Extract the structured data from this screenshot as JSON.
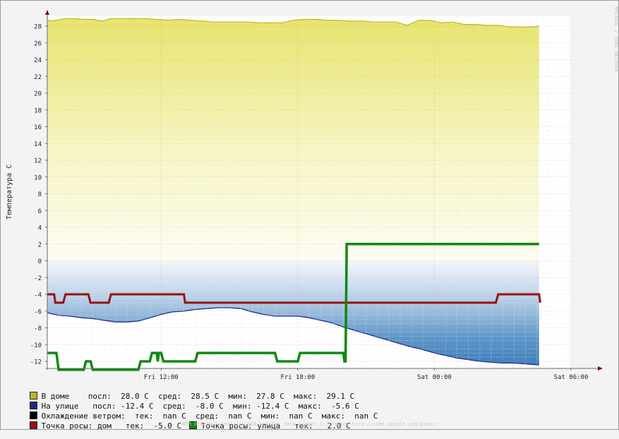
{
  "chart_data": {
    "type": "area",
    "ylabel": "Температура C",
    "ylim": [
      -13,
      30
    ],
    "y_ticks": [
      28,
      26,
      24,
      22,
      20,
      18,
      16,
      14,
      12,
      10,
      8,
      6,
      4,
      2,
      0,
      -2,
      -4,
      -6,
      -8,
      -10,
      -12
    ],
    "x_ticks": [
      "Fri 12:00",
      "Fri 18:00",
      "Sat 00:00",
      "Sat 06:00"
    ],
    "x_tick_hours": [
      12,
      18,
      24,
      30
    ],
    "xlim_hours": [
      7,
      30
    ],
    "grid": true,
    "series": [
      {
        "name": "В доме",
        "color": "#b9b91a",
        "style": "area-gradient-yellow",
        "x": [
          7.0,
          7.1,
          7.4,
          7.8,
          8.2,
          8.6,
          9.0,
          9.4,
          9.8,
          10.3,
          10.8,
          11.3,
          11.8,
          12.3,
          12.8,
          13.3,
          13.8,
          14.3,
          14.8,
          15.3,
          15.8,
          16.3,
          16.8,
          17.3,
          17.8,
          18.3,
          18.8,
          19.3,
          19.8,
          20.3,
          20.8,
          21.3,
          21.8,
          22.3,
          22.8,
          23.3,
          23.8,
          24.3,
          24.8,
          25.3,
          25.8,
          26.3,
          26.8,
          27.3,
          27.8,
          28.3,
          28.6
        ],
        "values": [
          28.8,
          28.6,
          28.7,
          28.9,
          28.9,
          28.8,
          28.8,
          28.6,
          28.9,
          28.9,
          28.9,
          28.9,
          28.8,
          28.7,
          28.8,
          28.7,
          28.6,
          28.5,
          28.5,
          28.5,
          28.5,
          28.4,
          28.4,
          28.4,
          28.7,
          28.8,
          28.8,
          28.7,
          28.7,
          28.6,
          28.6,
          28.5,
          28.5,
          28.5,
          28.1,
          28.7,
          28.7,
          28.4,
          28.5,
          28.2,
          28.2,
          28.1,
          28.1,
          27.9,
          27.9,
          27.9,
          28.0
        ]
      },
      {
        "name": "На улице",
        "color": "#1a2a88",
        "style": "area-gradient-blue",
        "x": [
          7.0,
          7.5,
          8.0,
          8.5,
          9.0,
          9.5,
          10.0,
          10.5,
          11.0,
          11.5,
          12.0,
          12.5,
          13.0,
          13.5,
          14.0,
          14.5,
          15.0,
          15.5,
          16.0,
          16.5,
          17.0,
          17.5,
          18.0,
          18.5,
          19.0,
          19.5,
          20.0,
          20.5,
          21.0,
          21.5,
          22.0,
          22.5,
          23.0,
          23.5,
          24.0,
          24.5,
          25.0,
          25.5,
          26.0,
          26.5,
          27.0,
          27.5,
          28.0,
          28.5,
          28.6
        ],
        "values": [
          -6.2,
          -6.5,
          -6.6,
          -6.8,
          -6.9,
          -7.1,
          -7.3,
          -7.3,
          -7.2,
          -6.8,
          -6.4,
          -6.1,
          -6.0,
          -5.8,
          -5.7,
          -5.6,
          -5.6,
          -5.7,
          -6.1,
          -6.4,
          -6.6,
          -6.6,
          -6.6,
          -6.8,
          -7.1,
          -7.4,
          -7.9,
          -8.3,
          -8.7,
          -9.1,
          -9.5,
          -9.9,
          -10.3,
          -10.6,
          -11.0,
          -11.3,
          -11.6,
          -11.8,
          -12.0,
          -12.1,
          -12.2,
          -12.2,
          -12.3,
          -12.4,
          -12.4
        ]
      },
      {
        "name": "Точка росы: дом",
        "color": "#9c0f0f",
        "style": "step-line",
        "x": [
          7.0,
          7.3,
          7.35,
          7.7,
          7.8,
          8.8,
          8.9,
          9.7,
          9.8,
          13.0,
          13.05,
          16.5,
          18.0,
          21.0,
          24.0,
          26.7,
          26.8,
          28.6,
          28.65
        ],
        "values": [
          -4.0,
          -4.0,
          -5.0,
          -5.0,
          -4.0,
          -4.0,
          -5.0,
          -5.0,
          -4.0,
          -4.0,
          -5.0,
          -5.0,
          -5.0,
          -5.0,
          -5.0,
          -5.0,
          -4.0,
          -4.0,
          -5.0
        ]
      },
      {
        "name": "Точка росы: улица",
        "color": "#0e8a0e",
        "style": "step-line",
        "x": [
          7.0,
          7.4,
          7.5,
          8.6,
          8.7,
          8.9,
          9.0,
          11.0,
          11.1,
          11.5,
          11.6,
          11.8,
          11.85,
          11.9,
          12.0,
          12.1,
          12.2,
          13.5,
          13.6,
          17.0,
          17.1,
          18.0,
          18.1,
          20.0,
          20.05,
          20.1,
          20.15,
          28.6
        ],
        "values": [
          -11.0,
          -11.0,
          -13.0,
          -13.0,
          -12.0,
          -12.0,
          -13.0,
          -13.0,
          -12.0,
          -12.0,
          -11.0,
          -11.0,
          -12.0,
          -11.0,
          -11.0,
          -12.0,
          -12.0,
          -12.0,
          -11.0,
          -11.0,
          -12.0,
          -12.0,
          -11.0,
          -11.0,
          -12.0,
          -12.0,
          2.0,
          2.0
        ]
      }
    ],
    "legend": [
      {
        "text": "В доме    посл:  28.0 C  сред:  28.5 C  мин:  27.8 C  макс:  29.1 C",
        "color": "#b9b91a"
      },
      {
        "text": "На улице   посл: -12.4 C  сред:  -8.0 C  мин: -12.4 C  макс:  -5.6 C",
        "color": "#1a2a88"
      },
      {
        "text": "Охлаждение ветром:  тек:  nan C  сред:  nan C  мин:  nan C  макс:  nan C",
        "color": "#000000"
      },
      {
        "text": "Точка росы: дом   тек:  -5.0 C ",
        "color": "#9c0f0f",
        "extra_text": "Точка росы: улица   тек:   2.0 C",
        "extra_color": "#0e8a0e"
      }
    ],
    "footer": "WMR Oregon Scientific USB weather data logger (c)created http://code.google.com/p/wmr/",
    "side_label": "RRDTOOL / TOBI OETIKER"
  }
}
